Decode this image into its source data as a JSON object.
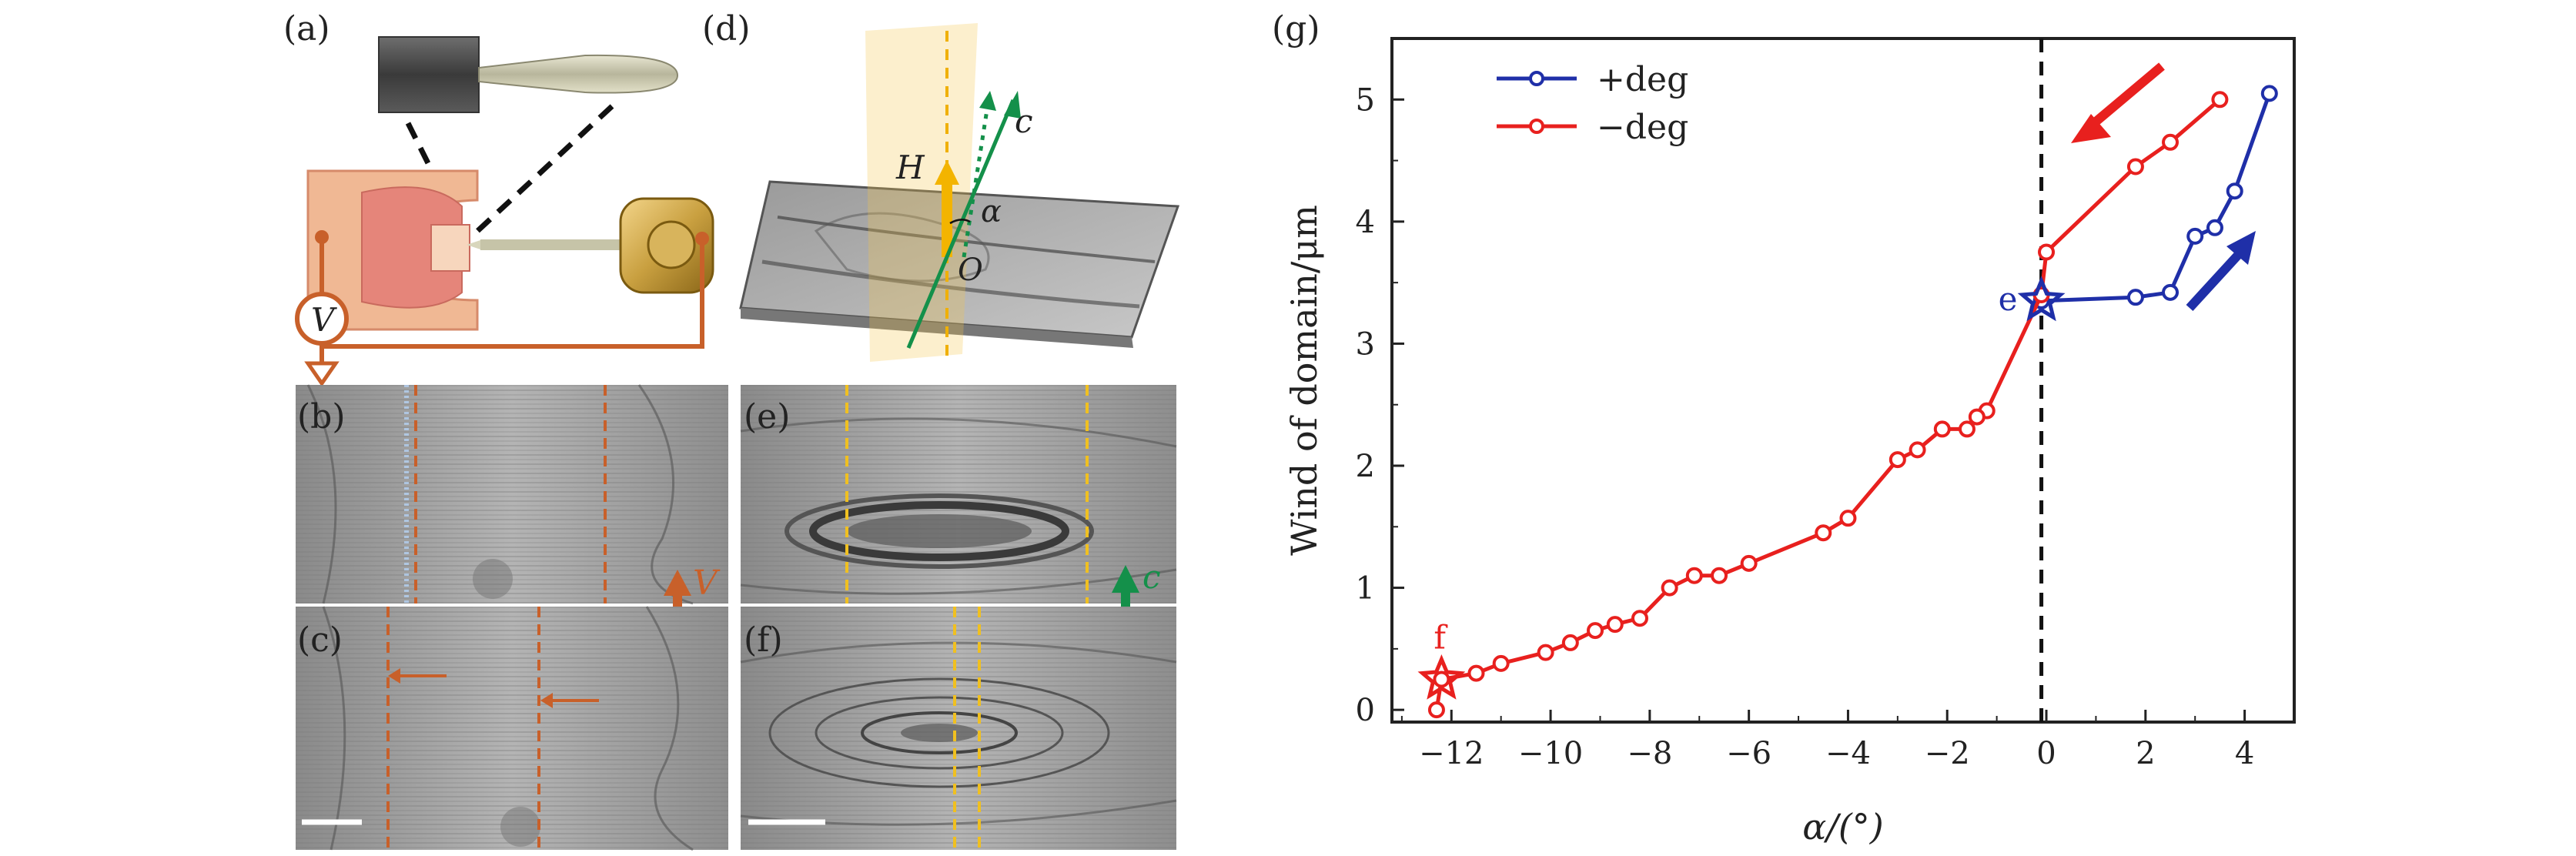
{
  "panels": {
    "a": "(a)",
    "b": "(b)",
    "c": "(c)",
    "d": "(d)",
    "e": "(e)",
    "f": "(f)",
    "g": "(g)"
  },
  "annotations": {
    "voltmeter": "V",
    "velocity": "V",
    "c_axis_e": "c",
    "field": "H",
    "c_axis_d": "c",
    "angle": "α",
    "origin": "O"
  },
  "colors": {
    "plus": "#1f2fa8",
    "minus": "#e8201e",
    "orange": "#c8602a",
    "yellow": "#f0c020",
    "green": "#14904a",
    "frame": "#222222"
  },
  "chart_data": {
    "type": "line",
    "title": "",
    "xlabel": "α/(°)",
    "ylabel": "Wind of domain/μm",
    "xlim": [
      -13.2,
      5.0
    ],
    "ylim": [
      -0.1,
      5.5
    ],
    "xticks": [
      -12,
      -10,
      -8,
      -6,
      -4,
      -2,
      0,
      2,
      4
    ],
    "yticks": [
      0,
      1,
      2,
      3,
      4,
      5
    ],
    "xtick_labels": [
      "−12",
      "−10",
      "−8",
      "−6",
      "−4",
      "−2",
      "0",
      "2",
      "4"
    ],
    "ytick_labels": [
      "0",
      "1",
      "2",
      "3",
      "4",
      "5"
    ],
    "legend_position": "top-left",
    "vline_x": -0.1,
    "series": [
      {
        "name": "+deg",
        "label": "+deg",
        "color": "#1f2fa8",
        "points": [
          [
            -0.1,
            3.35
          ],
          [
            1.8,
            3.38
          ],
          [
            2.5,
            3.42
          ],
          [
            3.0,
            3.88
          ],
          [
            3.4,
            3.95
          ],
          [
            3.8,
            4.25
          ],
          [
            4.5,
            5.05
          ]
        ]
      },
      {
        "name": "-deg",
        "label": "−deg",
        "color": "#e8201e",
        "points": [
          [
            3.5,
            5.0
          ],
          [
            2.5,
            4.65
          ],
          [
            1.8,
            4.45
          ],
          [
            0,
            3.75
          ],
          [
            -0.1,
            3.4
          ],
          [
            -1.2,
            2.45
          ],
          [
            -1.4,
            2.4
          ],
          [
            -1.6,
            2.3
          ],
          [
            -2.1,
            2.3
          ],
          [
            -2.6,
            2.13
          ],
          [
            -3.0,
            2.05
          ],
          [
            -4.0,
            1.57
          ],
          [
            -4.5,
            1.45
          ],
          [
            -6.0,
            1.2
          ],
          [
            -6.6,
            1.1
          ],
          [
            -7.1,
            1.1
          ],
          [
            -7.6,
            1.0
          ],
          [
            -8.2,
            0.75
          ],
          [
            -8.7,
            0.7
          ],
          [
            -9.1,
            0.65
          ],
          [
            -9.6,
            0.55
          ],
          [
            -10.1,
            0.47
          ],
          [
            -11.0,
            0.38
          ],
          [
            -11.5,
            0.3
          ],
          [
            -12.2,
            0.25
          ],
          [
            -12.3,
            0.0
          ]
        ]
      }
    ],
    "markers": [
      {
        "label": "e",
        "x": -0.1,
        "y": 3.35,
        "color": "#1f2fa8"
      },
      {
        "label": "f",
        "x": -12.2,
        "y": 0.25,
        "color": "#e8201e"
      }
    ]
  }
}
